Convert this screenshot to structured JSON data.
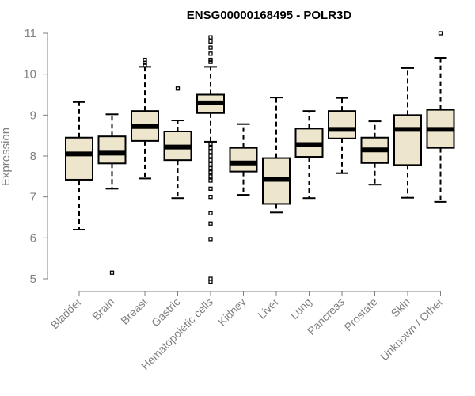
{
  "chart_data": {
    "type": "boxplot",
    "title": "ENSG00000168495 - POLR3D",
    "xlabel": "",
    "ylabel": "Expression",
    "ylim": [
      4.8,
      11.1
    ],
    "yticks": [
      5,
      6,
      7,
      8,
      9,
      10,
      11
    ],
    "categories": [
      "Bladder",
      "Brain",
      "Breast",
      "Gastric",
      "Hematopoietic cells",
      "Kidney",
      "Liver",
      "Lung",
      "Pancreas",
      "Prostate",
      "Skin",
      "Unknown / Other"
    ],
    "boxes": [
      {
        "min": 6.2,
        "q1": 7.42,
        "median": 8.05,
        "q3": 8.45,
        "max": 9.32,
        "outliers": []
      },
      {
        "min": 7.2,
        "q1": 7.82,
        "median": 8.07,
        "q3": 8.48,
        "max": 9.02,
        "outliers": [
          5.15
        ]
      },
      {
        "min": 7.45,
        "q1": 8.37,
        "median": 8.72,
        "q3": 9.1,
        "max": 10.18,
        "outliers": [
          10.22,
          10.28,
          10.35
        ]
      },
      {
        "min": 6.97,
        "q1": 7.9,
        "median": 8.22,
        "q3": 8.6,
        "max": 8.87,
        "outliers": [
          9.65
        ]
      },
      {
        "min": 8.35,
        "q1": 9.05,
        "median": 9.3,
        "q3": 9.5,
        "max": 10.18,
        "outliers": [
          10.3,
          10.35,
          10.5,
          10.65,
          10.8,
          10.9,
          8.3,
          8.2,
          8.1,
          8.0,
          7.9,
          7.8,
          7.7,
          7.6,
          7.5,
          7.4,
          7.2,
          7.0,
          6.6,
          6.35,
          5.97,
          5.0,
          4.93
        ]
      },
      {
        "min": 7.05,
        "q1": 7.62,
        "median": 7.83,
        "q3": 8.2,
        "max": 8.78,
        "outliers": []
      },
      {
        "min": 6.62,
        "q1": 6.83,
        "median": 7.43,
        "q3": 7.95,
        "max": 9.43,
        "outliers": []
      },
      {
        "min": 6.97,
        "q1": 7.98,
        "median": 8.28,
        "q3": 8.67,
        "max": 9.1,
        "outliers": []
      },
      {
        "min": 7.58,
        "q1": 8.43,
        "median": 8.65,
        "q3": 9.1,
        "max": 9.42,
        "outliers": []
      },
      {
        "min": 7.3,
        "q1": 7.83,
        "median": 8.15,
        "q3": 8.45,
        "max": 8.85,
        "outliers": []
      },
      {
        "min": 6.98,
        "q1": 7.78,
        "median": 8.65,
        "q3": 9.0,
        "max": 10.15,
        "outliers": []
      },
      {
        "min": 6.88,
        "q1": 8.2,
        "median": 8.65,
        "q3": 9.13,
        "max": 10.4,
        "outliers": [
          11.0
        ]
      }
    ],
    "colors": {
      "box_fill": "#ede5cc",
      "box_stroke": "#000000",
      "axis": "#808080",
      "text_gray": "#808080"
    }
  }
}
